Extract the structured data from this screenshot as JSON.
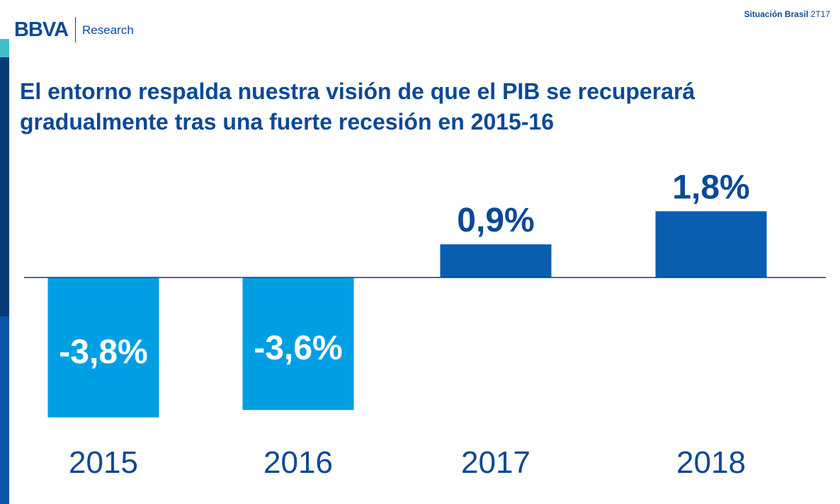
{
  "header": {
    "logo_mark": "BBVA",
    "logo_sub": "Research",
    "report_name": "Situación Brasil",
    "report_period": "2T17"
  },
  "title": "El entorno respalda nuestra visión de que el PIB se recuperará gradualmente tras una fuerte recesión en 2015-16",
  "colors": {
    "negative_bar": "#009fe3",
    "positive_bar": "#0a5db0",
    "text": "#0a4996"
  },
  "chart_data": {
    "type": "bar",
    "title": "",
    "xlabel": "",
    "ylabel": "",
    "categories": [
      "2015",
      "2016",
      "2017",
      "2018"
    ],
    "values": [
      -3.8,
      -3.6,
      0.9,
      1.8
    ],
    "value_labels": [
      "-3,8%",
      "-3,6%",
      "0,9%",
      "1,8%"
    ],
    "grid": false,
    "legend": "none"
  }
}
